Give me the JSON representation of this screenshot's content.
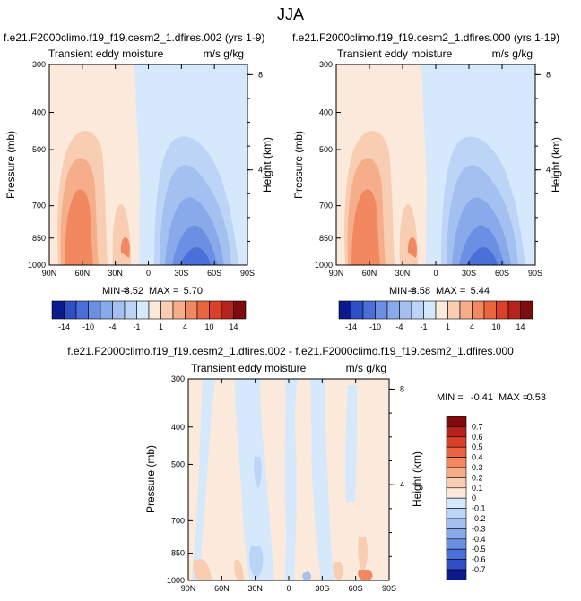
{
  "page_title": "JJA",
  "colors": {
    "positive": [
      "#fbe9dc",
      "#f8cdb2",
      "#f6ad8a",
      "#f2885f",
      "#ea6440",
      "#d9412a",
      "#b5231b",
      "#7f0c0c"
    ],
    "negative": [
      "#d6e8fb",
      "#bcd5f6",
      "#a3c0f0",
      "#88a9ea",
      "#6b8fe2",
      "#4a6fd8",
      "#2f4fc4",
      "#0a1a8c"
    ]
  },
  "chart_data": [
    {
      "type": "heatmap",
      "title": "f.e21.F2000climo.f19_f19.cesm2_1.dfires.002 (yrs 1-9)",
      "subtitle_left": "Transient eddy moisture",
      "subtitle_right": "m/s g/kg",
      "xlabel": "",
      "ylabel": "Pressure (mb)",
      "ylabel_right": "Height (km)",
      "x_ticks": [
        "90N",
        "60N",
        "30N",
        "0",
        "30S",
        "60S",
        "90S"
      ],
      "y_ticks": [
        "300",
        "400",
        "500",
        "700",
        "850",
        "1000"
      ],
      "y_right_ticks": [
        "8",
        "4"
      ],
      "min": -8.52,
      "max": 5.7,
      "min_label": "MIN = ",
      "max_label": "MAX = ",
      "min_text": "-8.52",
      "max_text": "5.70"
    },
    {
      "type": "heatmap",
      "title": "f.e21.F2000climo.f19_f19.cesm2_1.dfires.000 (yrs 1-19)",
      "subtitle_left": "Transient eddy moisture",
      "subtitle_right": "m/s g/kg",
      "xlabel": "",
      "ylabel": "Pressure (mb)",
      "ylabel_right": "Height (km)",
      "x_ticks": [
        "90N",
        "60N",
        "30N",
        "0",
        "30S",
        "60S",
        "90S"
      ],
      "y_ticks": [
        "300",
        "400",
        "500",
        "700",
        "850",
        "1000"
      ],
      "y_right_ticks": [
        "8",
        "4"
      ],
      "min": -8.58,
      "max": 5.44,
      "min_label": "MIN = ",
      "max_label": "MAX = ",
      "min_text": "-8.58",
      "max_text": "5.44"
    },
    {
      "type": "heatmap",
      "title": "f.e21.F2000climo.f19_f19.cesm2_1.dfires.002 - f.e21.F2000climo.f19_f19.cesm2_1.dfires.000",
      "subtitle_left": "Transient eddy moisture",
      "subtitle_right": "m/s g/kg",
      "xlabel": "",
      "ylabel": "Pressure (mb)",
      "ylabel_right": "Height (km)",
      "x_ticks": [
        "90N",
        "60N",
        "30N",
        "0",
        "30S",
        "60S",
        "90S"
      ],
      "y_ticks": [
        "300",
        "400",
        "500",
        "700",
        "850",
        "1000"
      ],
      "y_right_ticks": [
        "8",
        "4"
      ],
      "min": -0.41,
      "max": 0.53,
      "min_label": "MIN = ",
      "max_label": "MAX = ",
      "min_text": "-0.41",
      "max_text": "0.53"
    }
  ],
  "colorbar_main": {
    "labels": [
      "-14",
      "-10",
      "-4",
      "-1",
      "1",
      "4",
      "10",
      "14"
    ]
  },
  "colorbar_diff": {
    "labels": [
      "0.7",
      "0.6",
      "0.5",
      "0.4",
      "0.3",
      "0.2",
      "0.1",
      "0",
      "-0.1",
      "-0.2",
      "-0.3",
      "-0.4",
      "-0.5",
      "-0.6",
      "-0.7"
    ]
  }
}
